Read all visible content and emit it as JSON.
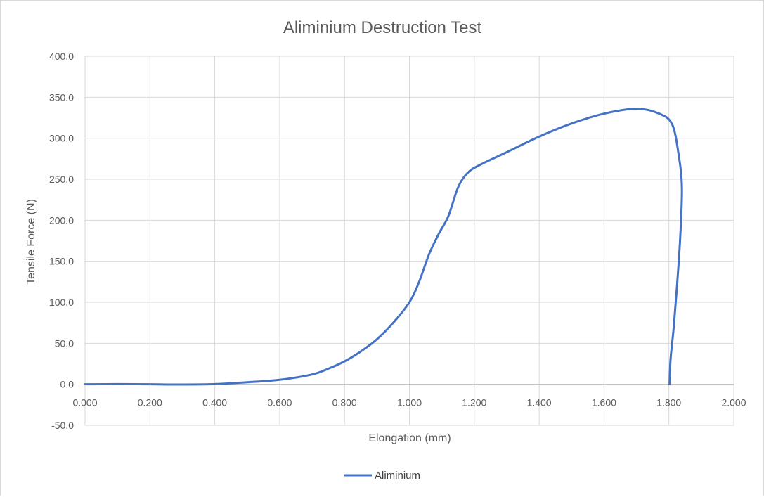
{
  "chart_data": {
    "type": "line",
    "title": "Aliminium Destruction Test",
    "xlabel": "Elongation (mm)",
    "ylabel": "Tensile Force (N)",
    "xlim": [
      0,
      2
    ],
    "ylim": [
      -50,
      400
    ],
    "x_ticks": [
      "0.000",
      "0.200",
      "0.400",
      "0.600",
      "0.800",
      "1.000",
      "1.200",
      "1.400",
      "1.600",
      "1.800",
      "2.000"
    ],
    "y_ticks": [
      "-50.0",
      "0.0",
      "50.0",
      "100.0",
      "150.0",
      "200.0",
      "250.0",
      "300.0",
      "350.0",
      "400.0"
    ],
    "grid": true,
    "legend_position": "bottom",
    "series": [
      {
        "name": "Aliminium",
        "color": "#4472C4",
        "points": [
          [
            0.0,
            0.0
          ],
          [
            0.1,
            0.2
          ],
          [
            0.2,
            0.0
          ],
          [
            0.3,
            -0.3
          ],
          [
            0.4,
            0.2
          ],
          [
            0.5,
            2.5
          ],
          [
            0.6,
            5.5
          ],
          [
            0.7,
            12
          ],
          [
            0.75,
            19
          ],
          [
            0.8,
            28
          ],
          [
            0.85,
            40
          ],
          [
            0.9,
            55
          ],
          [
            0.95,
            75
          ],
          [
            1.0,
            100
          ],
          [
            1.03,
            125
          ],
          [
            1.06,
            158
          ],
          [
            1.09,
            183
          ],
          [
            1.12,
            205
          ],
          [
            1.15,
            240
          ],
          [
            1.18,
            258
          ],
          [
            1.22,
            268
          ],
          [
            1.3,
            283
          ],
          [
            1.4,
            302
          ],
          [
            1.5,
            318
          ],
          [
            1.6,
            330
          ],
          [
            1.7,
            336
          ],
          [
            1.77,
            330
          ],
          [
            1.81,
            317
          ],
          [
            1.83,
            280
          ],
          [
            1.84,
            240
          ],
          [
            1.835,
            180
          ],
          [
            1.825,
            120
          ],
          [
            1.815,
            70
          ],
          [
            1.805,
            30
          ],
          [
            1.802,
            0
          ]
        ]
      }
    ]
  }
}
